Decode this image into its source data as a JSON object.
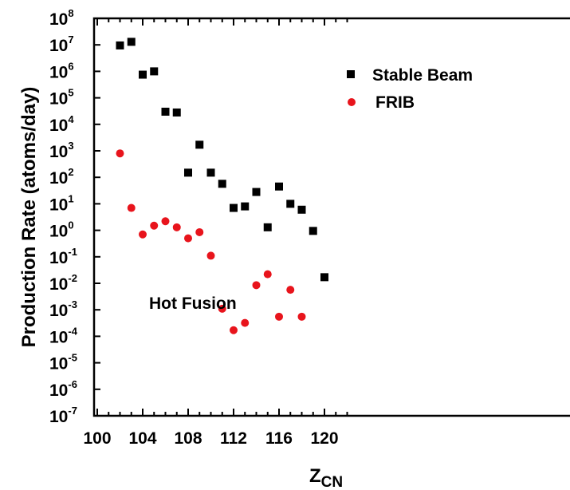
{
  "chart_data": {
    "type": "scatter",
    "title": "",
    "xlabel": "Z",
    "xlabel_sub": "CN",
    "ylabel": "Production Rate (atoms/day)",
    "y_scale": "log",
    "xlim": [
      100,
      122
    ],
    "ylim": [
      1e-07,
      100000000.0
    ],
    "x_ticks": [
      {
        "value": 100,
        "label": "100"
      },
      {
        "value": 104,
        "label": "104"
      },
      {
        "value": 108,
        "label": "108"
      },
      {
        "value": 112,
        "label": "112"
      },
      {
        "value": 116,
        "label": "116"
      },
      {
        "value": 120,
        "label": "120"
      }
    ],
    "y_ticks": [
      {
        "exp": -7,
        "base": "10",
        "sup": "-7"
      },
      {
        "exp": -6,
        "base": "10",
        "sup": "-6"
      },
      {
        "exp": -5,
        "base": "10",
        "sup": "-5"
      },
      {
        "exp": -4,
        "base": "10",
        "sup": "-4"
      },
      {
        "exp": -3,
        "base": "10",
        "sup": "-3"
      },
      {
        "exp": -2,
        "base": "10",
        "sup": "-2"
      },
      {
        "exp": -1,
        "base": "10",
        "sup": "-1"
      },
      {
        "exp": 0,
        "base": "10",
        "sup": "0"
      },
      {
        "exp": 1,
        "base": "10",
        "sup": "1"
      },
      {
        "exp": 2,
        "base": "10",
        "sup": "2"
      },
      {
        "exp": 3,
        "base": "10",
        "sup": "3"
      },
      {
        "exp": 4,
        "base": "10",
        "sup": "4"
      },
      {
        "exp": 5,
        "base": "10",
        "sup": "5"
      },
      {
        "exp": 6,
        "base": "10",
        "sup": "6"
      },
      {
        "exp": 7,
        "base": "10",
        "sup": "7"
      },
      {
        "exp": 8,
        "base": "10",
        "sup": "8"
      }
    ],
    "grid": false,
    "legend_position": "top-right",
    "series": [
      {
        "name": "Stable Beam",
        "marker": "square",
        "color": "#000000",
        "points": [
          {
            "x": 102,
            "y": 9500000.0
          },
          {
            "x": 103,
            "y": 13000000.0
          },
          {
            "x": 104,
            "y": 750000.0
          },
          {
            "x": 105,
            "y": 1000000.0
          },
          {
            "x": 106,
            "y": 30000.0
          },
          {
            "x": 107,
            "y": 28000.0
          },
          {
            "x": 108,
            "y": 150
          },
          {
            "x": 109,
            "y": 1700
          },
          {
            "x": 110,
            "y": 150
          },
          {
            "x": 111,
            "y": 57
          },
          {
            "x": 112,
            "y": 7
          },
          {
            "x": 113,
            "y": 8
          },
          {
            "x": 114,
            "y": 28
          },
          {
            "x": 115,
            "y": 1.3
          },
          {
            "x": 116,
            "y": 45
          },
          {
            "x": 117,
            "y": 10
          },
          {
            "x": 118,
            "y": 6
          },
          {
            "x": 119,
            "y": 0.95
          },
          {
            "x": 120,
            "y": 0.017
          }
        ]
      },
      {
        "name": "FRIB",
        "marker": "circle",
        "color": "#e8141c",
        "points": [
          {
            "x": 102,
            "y": 800
          },
          {
            "x": 103,
            "y": 7
          },
          {
            "x": 104,
            "y": 0.7
          },
          {
            "x": 105,
            "y": 1.5
          },
          {
            "x": 106,
            "y": 2.2
          },
          {
            "x": 107,
            "y": 1.3
          },
          {
            "x": 108,
            "y": 0.5
          },
          {
            "x": 109,
            "y": 0.85
          },
          {
            "x": 110,
            "y": 0.11
          },
          {
            "x": 111,
            "y": 0.0011
          },
          {
            "x": 112,
            "y": 0.00017
          },
          {
            "x": 113,
            "y": 0.00032
          },
          {
            "x": 114,
            "y": 0.0085
          },
          {
            "x": 115,
            "y": 0.022
          },
          {
            "x": 116,
            "y": 0.00055
          },
          {
            "x": 117,
            "y": 0.0057
          },
          {
            "x": 118,
            "y": 0.00055
          }
        ]
      }
    ],
    "annotations": [
      {
        "text": "Hot Fusion",
        "x": 110.6,
        "y": 0.0014
      }
    ]
  }
}
